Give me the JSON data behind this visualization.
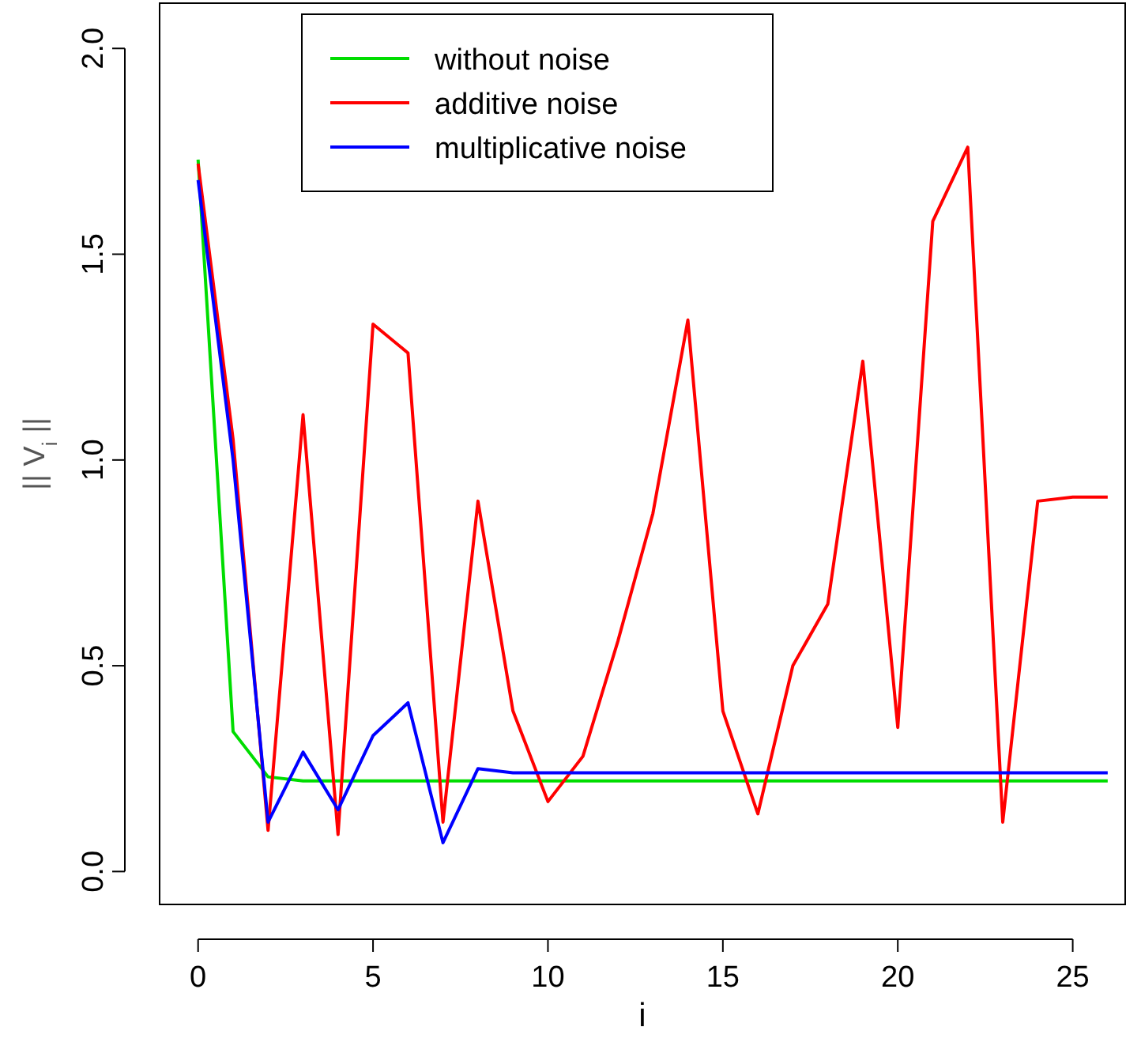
{
  "chart_data": {
    "type": "line",
    "xlabel": "i",
    "ylabel": "|| V$_{i}$ ||",
    "x": [
      0,
      1,
      2,
      3,
      4,
      5,
      6,
      7,
      8,
      9,
      10,
      11,
      12,
      13,
      14,
      15,
      16,
      17,
      18,
      19,
      20,
      21,
      22,
      23,
      24,
      25,
      26
    ],
    "series": [
      {
        "name": "without noise",
        "color": "#00dd00",
        "values": [
          1.73,
          0.34,
          0.23,
          0.22,
          0.22,
          0.22,
          0.22,
          0.22,
          0.22,
          0.22,
          0.22,
          0.22,
          0.22,
          0.22,
          0.22,
          0.22,
          0.22,
          0.22,
          0.22,
          0.22,
          0.22,
          0.22,
          0.22,
          0.22,
          0.22,
          0.22,
          0.22
        ]
      },
      {
        "name": "additive noise",
        "color": "#ff0000",
        "values": [
          1.72,
          1.05,
          0.1,
          1.11,
          0.09,
          1.33,
          1.26,
          0.12,
          0.9,
          0.39,
          0.17,
          0.28,
          0.56,
          0.87,
          1.34,
          0.39,
          0.14,
          0.5,
          0.65,
          1.24,
          0.35,
          1.58,
          1.76,
          0.12,
          0.9,
          0.91,
          0.91
        ]
      },
      {
        "name": "multiplicative noise",
        "color": "#0000ff",
        "values": [
          1.68,
          1.0,
          0.12,
          0.29,
          0.15,
          0.33,
          0.41,
          0.07,
          0.25,
          0.24,
          0.24,
          0.24,
          0.24,
          0.24,
          0.24,
          0.24,
          0.24,
          0.24,
          0.24,
          0.24,
          0.24,
          0.24,
          0.24,
          0.24,
          0.24,
          0.24,
          0.24
        ]
      }
    ],
    "xlim": [
      -1.1,
      26.5
    ],
    "xticks": [
      0,
      5,
      10,
      15,
      20,
      25
    ],
    "ylim": [
      -0.08,
      2.11
    ],
    "yticks": [
      {
        "value": 0,
        "label": "0.0"
      },
      {
        "value": 0.5,
        "label": "0.5"
      },
      {
        "value": 1,
        "label": "1.0"
      },
      {
        "value": 1.5,
        "label": "1.5"
      },
      {
        "value": 2,
        "label": "2.0"
      }
    ],
    "legend": "top",
    "grid": false,
    "marker": "none",
    "line_style": "solid"
  }
}
